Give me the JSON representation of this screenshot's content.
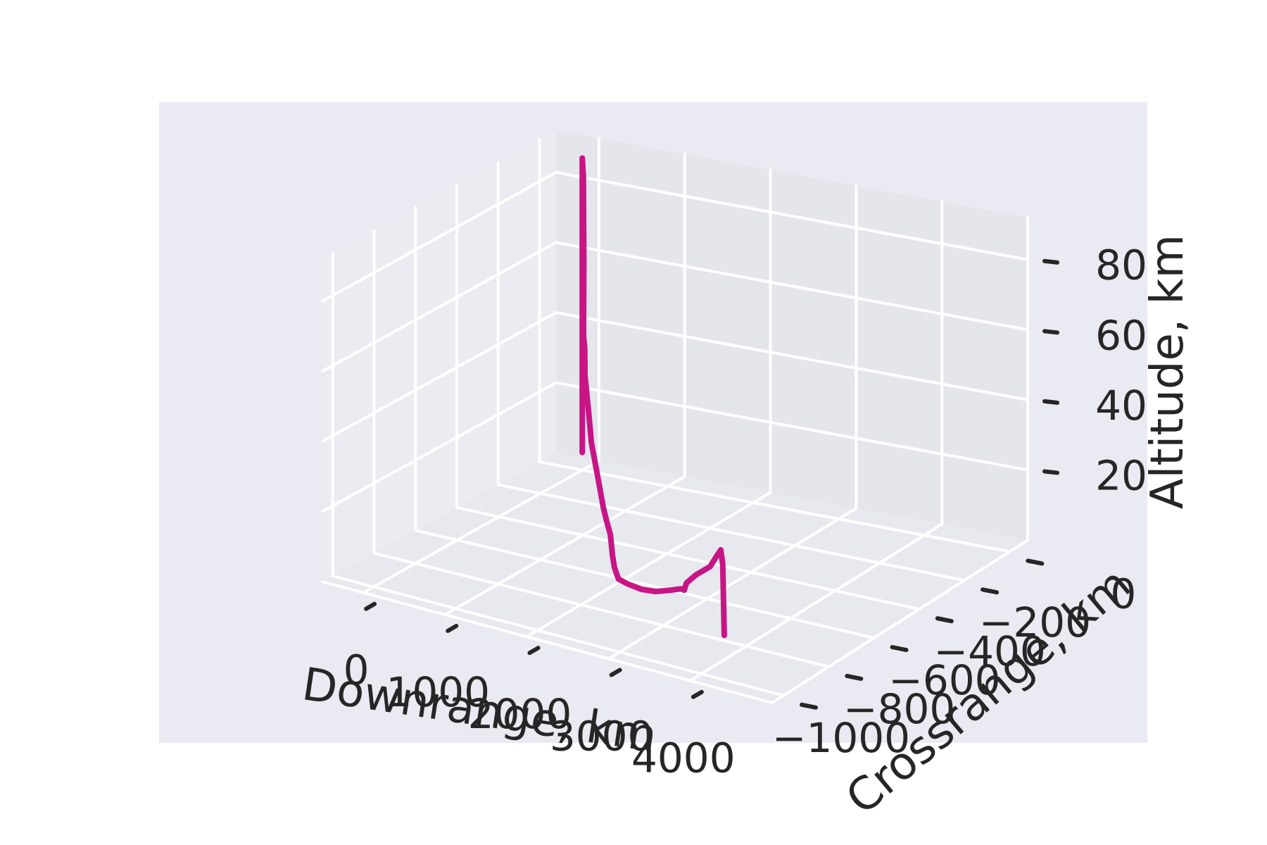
{
  "chart_data": {
    "type": "line",
    "projection": "3d",
    "style": "seaborn-darkgrid",
    "grid": true,
    "colors": {
      "background": "#eaeaf2",
      "grid": "#ffffff",
      "line": "#c71585",
      "text": "#262626",
      "tick_mark": "#262626"
    },
    "xlabel": "Downrange, km",
    "ylabel": "Crossrange, km",
    "zlabel": "Altitude, km",
    "xlim": [
      -500,
      5000
    ],
    "ylim": [
      -1050,
      80
    ],
    "zlim": [
      0,
      92
    ],
    "xticks": [
      0,
      1000,
      2000,
      3000,
      4000
    ],
    "xtick_labels": [
      "0",
      "1000",
      "2000",
      "3000",
      "4000"
    ],
    "yticks": [
      0,
      -200,
      -400,
      -600,
      -800,
      -1000
    ],
    "ytick_labels": [
      "0",
      "−200",
      "−400",
      "−600",
      "−800",
      "−1000"
    ],
    "zticks": [
      20,
      40,
      60,
      80
    ],
    "ztick_labels": [
      "20",
      "40",
      "60",
      "80"
    ],
    "series": [
      {
        "x": [
          0,
          0,
          0,
          25,
          55,
          100,
          200,
          300,
          400,
          600,
          800,
          1000,
          1200,
          1400,
          1600,
          1700,
          1800,
          1850,
          1900,
          2000,
          2200,
          2500,
          2800,
          3100,
          3300,
          3400,
          3520,
          3560,
          3700,
          3900,
          4000,
          4050,
          4080,
          4100
        ],
        "y": [
          0,
          0,
          0,
          -5,
          -15,
          -35,
          -70,
          -110,
          -150,
          -220,
          -290,
          -360,
          -420,
          -480,
          -540,
          -565,
          -585,
          -595,
          -605,
          -625,
          -660,
          -710,
          -760,
          -810,
          -850,
          -870,
          -900,
          -905,
          -915,
          -925,
          -930,
          -932,
          -934,
          -935
        ],
        "z": [
          5,
          82,
          89,
          84,
          60,
          40,
          38,
          36,
          34,
          31,
          28,
          25,
          22,
          19,
          16,
          14,
          11,
          6,
          3,
          1,
          2,
          4,
          7,
          11,
          14,
          15.5,
          17,
          19.5,
          23,
          27,
          31,
          33,
          29,
          9
        ]
      }
    ]
  }
}
